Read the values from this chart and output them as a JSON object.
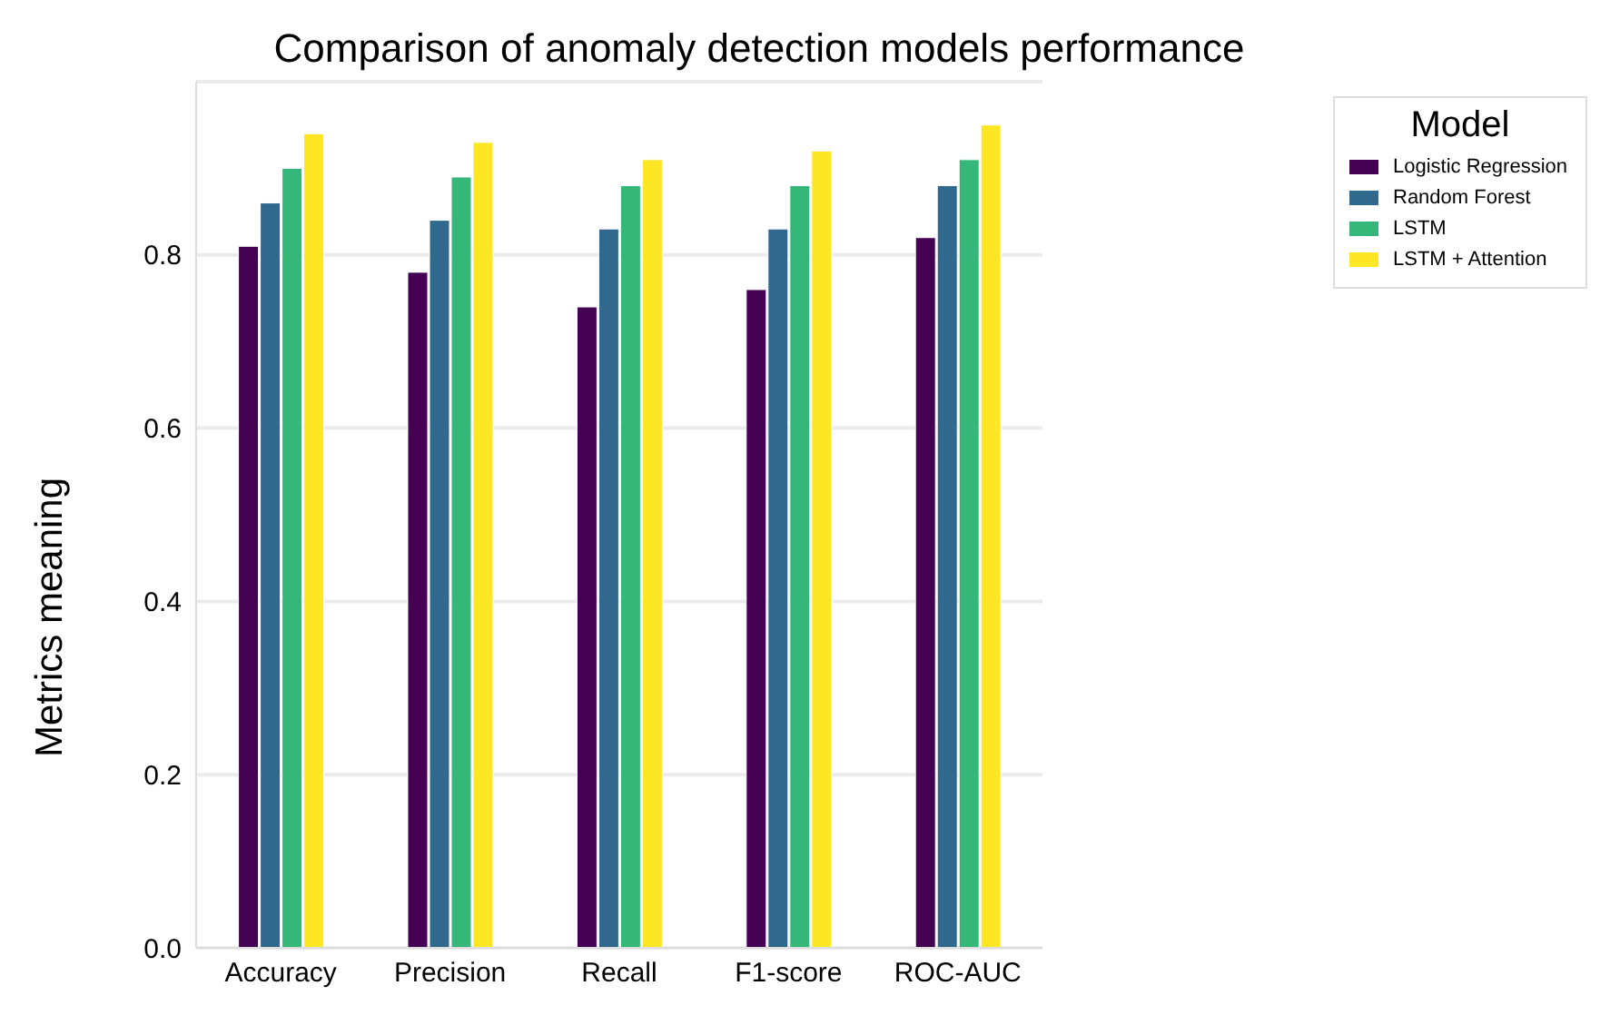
{
  "chart_data": {
    "type": "bar",
    "title": "Comparison of anomaly detection models performance",
    "ylabel": "Metrics meaning",
    "legend_title": "Model",
    "categories": [
      "Accuracy",
      "Precision",
      "Recall",
      "F1-score",
      "ROC-AUC"
    ],
    "series": [
      {
        "name": "Logistic Regression",
        "color": "#440154",
        "values": [
          0.81,
          0.78,
          0.74,
          0.76,
          0.82
        ]
      },
      {
        "name": "Random Forest",
        "color": "#31688e",
        "values": [
          0.86,
          0.84,
          0.83,
          0.83,
          0.88
        ]
      },
      {
        "name": "LSTM",
        "color": "#35b779",
        "values": [
          0.9,
          0.89,
          0.88,
          0.88,
          0.91
        ]
      },
      {
        "name": "LSTM + Attention",
        "color": "#fde725",
        "values": [
          0.94,
          0.93,
          0.91,
          0.92,
          0.95
        ]
      }
    ],
    "ylim": [
      0,
      1
    ],
    "yticks": [
      {
        "value": 0,
        "label": "0.0"
      },
      {
        "value": 0.2,
        "label": "0.2"
      },
      {
        "value": 0.4,
        "label": "0.4"
      },
      {
        "value": 0.6,
        "label": "0.6"
      },
      {
        "value": 0.8,
        "label": "0.8"
      }
    ],
    "grid": "y",
    "legend": "top right"
  }
}
